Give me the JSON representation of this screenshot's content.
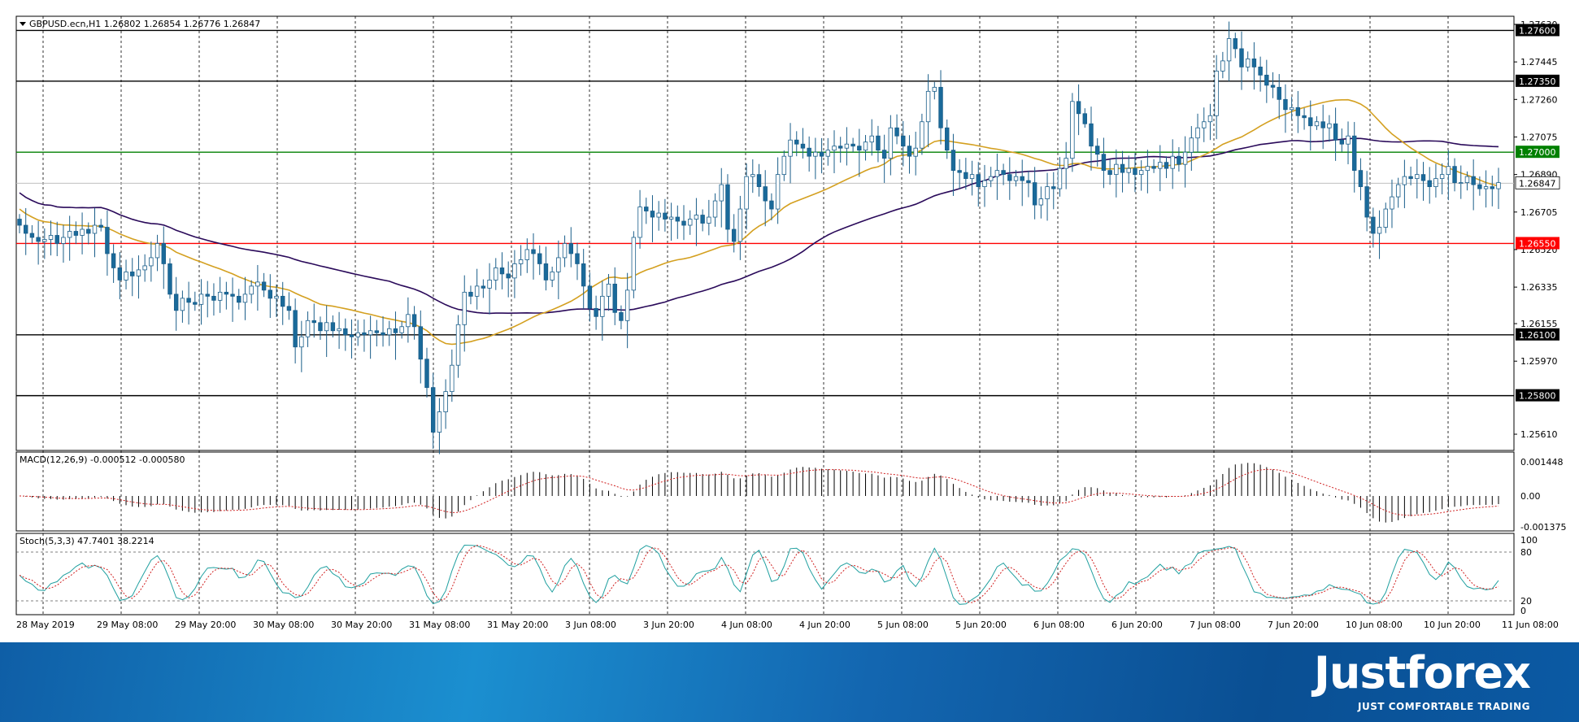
{
  "chart_data": {
    "type": "candlestick",
    "symbol_header": "GBPUSD.ecn,H1  1.26802 1.26854 1.26776 1.26847",
    "price_axis": {
      "min": 1.2553,
      "max": 1.2767,
      "ticks": [
        "1.27630",
        "1.27445",
        "1.27260",
        "1.27075",
        "1.26890",
        "1.26705",
        "1.26520",
        "1.26335",
        "1.26155",
        "1.25970",
        "1.25610"
      ]
    },
    "levels": [
      {
        "value": 1.276,
        "label": "1.27600",
        "color": "#000000"
      },
      {
        "value": 1.2735,
        "label": "1.27350",
        "color": "#000000"
      },
      {
        "value": 1.27,
        "label": "1.27000",
        "color": "#008000"
      },
      {
        "value": 1.2655,
        "label": "1.26550",
        "color": "#ff0000"
      },
      {
        "value": 1.261,
        "label": "1.26100",
        "color": "#000000"
      },
      {
        "value": 1.258,
        "label": "1.25800",
        "color": "#000000"
      }
    ],
    "current_price": {
      "value": 1.26847,
      "label": "1.26847"
    },
    "time_labels": [
      "28 May 2019",
      "29 May 08:00",
      "29 May 20:00",
      "30 May 08:00",
      "30 May 20:00",
      "31 May 08:00",
      "31 May 20:00",
      "3 Jun 08:00",
      "3 Jun 20:00",
      "4 Jun 08:00",
      "4 Jun 20:00",
      "5 Jun 08:00",
      "5 Jun 20:00",
      "6 Jun 08:00",
      "6 Jun 20:00",
      "7 Jun 08:00",
      "7 Jun 20:00",
      "10 Jun 08:00",
      "10 Jun 20:00",
      "11 Jun 08:00"
    ],
    "closes": [
      1.2664,
      1.266,
      1.2658,
      1.2656,
      1.2657,
      1.2659,
      1.2655,
      1.2658,
      1.2661,
      1.2659,
      1.2662,
      1.266,
      1.2664,
      1.2663,
      1.265,
      1.2643,
      1.2637,
      1.2641,
      1.2639,
      1.2642,
      1.2644,
      1.2648,
      1.2655,
      1.2645,
      1.263,
      1.2622,
      1.2628,
      1.2626,
      1.2625,
      1.263,
      1.2629,
      1.2627,
      1.2631,
      1.263,
      1.2629,
      1.2626,
      1.263,
      1.2634,
      1.2636,
      1.2632,
      1.2628,
      1.2629,
      1.2624,
      1.2622,
      1.2604,
      1.2609,
      1.2617,
      1.2616,
      1.2612,
      1.2616,
      1.2612,
      1.2613,
      1.261,
      1.2609,
      1.2611,
      1.261,
      1.2612,
      1.2611,
      1.261,
      1.2613,
      1.2611,
      1.2614,
      1.262,
      1.2614,
      1.2598,
      1.2584,
      1.2562,
      1.2572,
      1.2582,
      1.2595,
      1.2615,
      1.2631,
      1.2629,
      1.2634,
      1.2633,
      1.2637,
      1.2643,
      1.264,
      1.2638,
      1.2645,
      1.2647,
      1.2652,
      1.265,
      1.2645,
      1.2637,
      1.2641,
      1.2648,
      1.2655,
      1.265,
      1.2645,
      1.2634,
      1.2623,
      1.2619,
      1.2629,
      1.2635,
      1.2621,
      1.2617,
      1.2632,
      1.2658,
      1.2673,
      1.2671,
      1.2668,
      1.267,
      1.2667,
      1.2668,
      1.2666,
      1.2664,
      1.2667,
      1.2669,
      1.2665,
      1.2668,
      1.2676,
      1.2684,
      1.2662,
      1.2656,
      1.2672,
      1.2688,
      1.2689,
      1.2683,
      1.2676,
      1.2672,
      1.2689,
      1.2698,
      1.2706,
      1.2704,
      1.2702,
      1.2698,
      1.27,
      1.2698,
      1.2701,
      1.2703,
      1.2702,
      1.2704,
      1.2703,
      1.2701,
      1.2705,
      1.2708,
      1.2701,
      1.2697,
      1.2712,
      1.2708,
      1.2703,
      1.2698,
      1.2702,
      1.2715,
      1.273,
      1.2732,
      1.2712,
      1.2701,
      1.2691,
      1.269,
      1.2687,
      1.2689,
      1.2683,
      1.2686,
      1.2688,
      1.2691,
      1.2689,
      1.2686,
      1.2688,
      1.2686,
      1.2685,
      1.2674,
      1.2677,
      1.2683,
      1.2682,
      1.2692,
      1.2697,
      1.2725,
      1.2719,
      1.2714,
      1.2703,
      1.2699,
      1.2691,
      1.2689,
      1.2694,
      1.269,
      1.2692,
      1.2689,
      1.2691,
      1.2693,
      1.2692,
      1.2695,
      1.2692,
      1.2698,
      1.2694,
      1.27,
      1.2707,
      1.2712,
      1.2715,
      1.2718,
      1.274,
      1.2745,
      1.2756,
      1.2751,
      1.2742,
      1.2746,
      1.2742,
      1.2738,
      1.2733,
      1.2732,
      1.2726,
      1.2721,
      1.2722,
      1.2718,
      1.2717,
      1.2713,
      1.2715,
      1.2712,
      1.2714,
      1.2706,
      1.2704,
      1.2708,
      1.2691,
      1.2683,
      1.2668,
      1.266,
      1.2663,
      1.2672,
      1.2678,
      1.2684,
      1.2688,
      1.2687,
      1.2689,
      1.2686,
      1.2683,
      1.2687,
      1.2689,
      1.2693,
      1.2685,
      1.2685,
      1.2688,
      1.2684,
      1.2682,
      1.2683,
      1.2682,
      1.2685
    ],
    "ma_slow_color": "#2a0a5a",
    "ma_fast_color": "#d4a020",
    "macd": {
      "header": "MACD(12,26,9) -0.000512 -0.000580",
      "ticks": [
        "0.001448",
        "0.00",
        "-0.001375"
      ]
    },
    "stochastic": {
      "header": "Stoch(5,3,3) 47.7401 38.2214",
      "ticks": [
        "100",
        "80",
        "20",
        "0"
      ]
    }
  },
  "branding": {
    "logo": "Justforex",
    "tagline": "JUST COMFORTABLE TRADING"
  }
}
